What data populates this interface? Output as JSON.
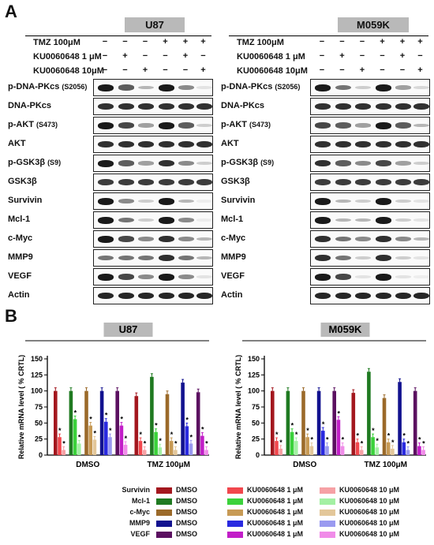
{
  "panelA": {
    "letter": "A",
    "cells": [
      {
        "name": "U87",
        "left": true
      },
      {
        "name": "M059K",
        "left": false
      }
    ],
    "treatment_rows": [
      {
        "label": "TMZ 100μM",
        "signs": [
          "−",
          "−",
          "−",
          "+",
          "+",
          "+"
        ]
      },
      {
        "label": "KU0060648  1 μM",
        "signs": [
          "−",
          "+",
          "−",
          "−",
          "+",
          "−"
        ]
      },
      {
        "label": "KU0060648  10μM",
        "signs": [
          "−",
          "−",
          "+",
          "−",
          "−",
          "+"
        ]
      }
    ],
    "blots": [
      {
        "label": "p-DNA-PKcs",
        "sub": "(S2056)"
      },
      {
        "label": "DNA-PKcs",
        "sub": ""
      },
      {
        "label": "p-AKT",
        "sub": "(S473)"
      },
      {
        "label": "AKT",
        "sub": ""
      },
      {
        "label": "p-GSK3β",
        "sub": "(S9)"
      },
      {
        "label": "GSK3β",
        "sub": ""
      },
      {
        "label": "Survivin",
        "sub": ""
      },
      {
        "label": "Mcl-1",
        "sub": ""
      },
      {
        "label": "c-Myc",
        "sub": ""
      },
      {
        "label": "MMP9",
        "sub": ""
      },
      {
        "label": "VEGF",
        "sub": ""
      },
      {
        "label": "Actin",
        "sub": ""
      }
    ]
  },
  "panelB": {
    "letter": "B",
    "legend": {
      "rows": [
        {
          "gene": "Survivin",
          "colors": [
            "#a3171e",
            "#f1474d",
            "#f6a1a5"
          ]
        },
        {
          "gene": "Mcl-1",
          "colors": [
            "#1f7a21",
            "#3bd23b",
            "#a3f0a3"
          ]
        },
        {
          "gene": "c-Myc",
          "colors": [
            "#9b6a2a",
            "#c79a55",
            "#e3c79a"
          ]
        },
        {
          "gene": "MMP9",
          "colors": [
            "#12128f",
            "#2a2ae0",
            "#9a9af0"
          ]
        },
        {
          "gene": "VEGF",
          "colors": [
            "#5b1060",
            "#c21ec8",
            "#f08ce8"
          ]
        }
      ],
      "labels": [
        "DMSO",
        "KU0060648  1  μM",
        "KU0060648 10 μM"
      ]
    }
  },
  "chart_data": [
    {
      "type": "bar",
      "title": "U87",
      "ylabel": "Relative mRNA level ( % CRTL)",
      "ylim": [
        0,
        150
      ],
      "yticks": [
        0,
        25,
        50,
        75,
        100,
        125,
        150
      ],
      "categories": [
        "DMSO",
        "TMZ 100μM"
      ],
      "significance_marker": "*",
      "series": [
        {
          "name": "Survivin",
          "values": [
            [
              100,
              28,
              8
            ],
            [
              92,
              22,
              8
            ]
          ]
        },
        {
          "name": "Mcl-1",
          "values": [
            [
              100,
              56,
              18
            ],
            [
              122,
              36,
              12
            ]
          ]
        },
        {
          "name": "c-Myc",
          "values": [
            [
              100,
              46,
              24
            ],
            [
              95,
              22,
              8
            ]
          ]
        },
        {
          "name": "MMP9",
          "values": [
            [
              100,
              52,
              28
            ],
            [
              113,
              45,
              18
            ]
          ]
        },
        {
          "name": "VEGF",
          "values": [
            [
              100,
              46,
              16
            ],
            [
              98,
              30,
              8
            ]
          ]
        }
      ]
    },
    {
      "type": "bar",
      "title": "M059K",
      "ylabel": "Relative mRNA level ( % CRTL)",
      "ylim": [
        0,
        150
      ],
      "yticks": [
        0,
        25,
        50,
        75,
        100,
        125,
        150
      ],
      "categories": [
        "DMSO",
        "TMZ 100μM"
      ],
      "significance_marker": "*",
      "series": [
        {
          "name": "Survivin",
          "values": [
            [
              100,
              22,
              10
            ],
            [
              97,
              20,
              8
            ]
          ]
        },
        {
          "name": "Mcl-1",
          "values": [
            [
              100,
              36,
              22
            ],
            [
              130,
              28,
              12
            ]
          ]
        },
        {
          "name": "c-Myc",
          "values": [
            [
              100,
              28,
              14
            ],
            [
              89,
              20,
              10
            ]
          ]
        },
        {
          "name": "MMP9",
          "values": [
            [
              100,
              38,
              14
            ],
            [
              114,
              20,
              8
            ]
          ]
        },
        {
          "name": "VEGF",
          "values": [
            [
              100,
              55,
              14
            ],
            [
              100,
              14,
              8
            ]
          ]
        }
      ]
    }
  ]
}
